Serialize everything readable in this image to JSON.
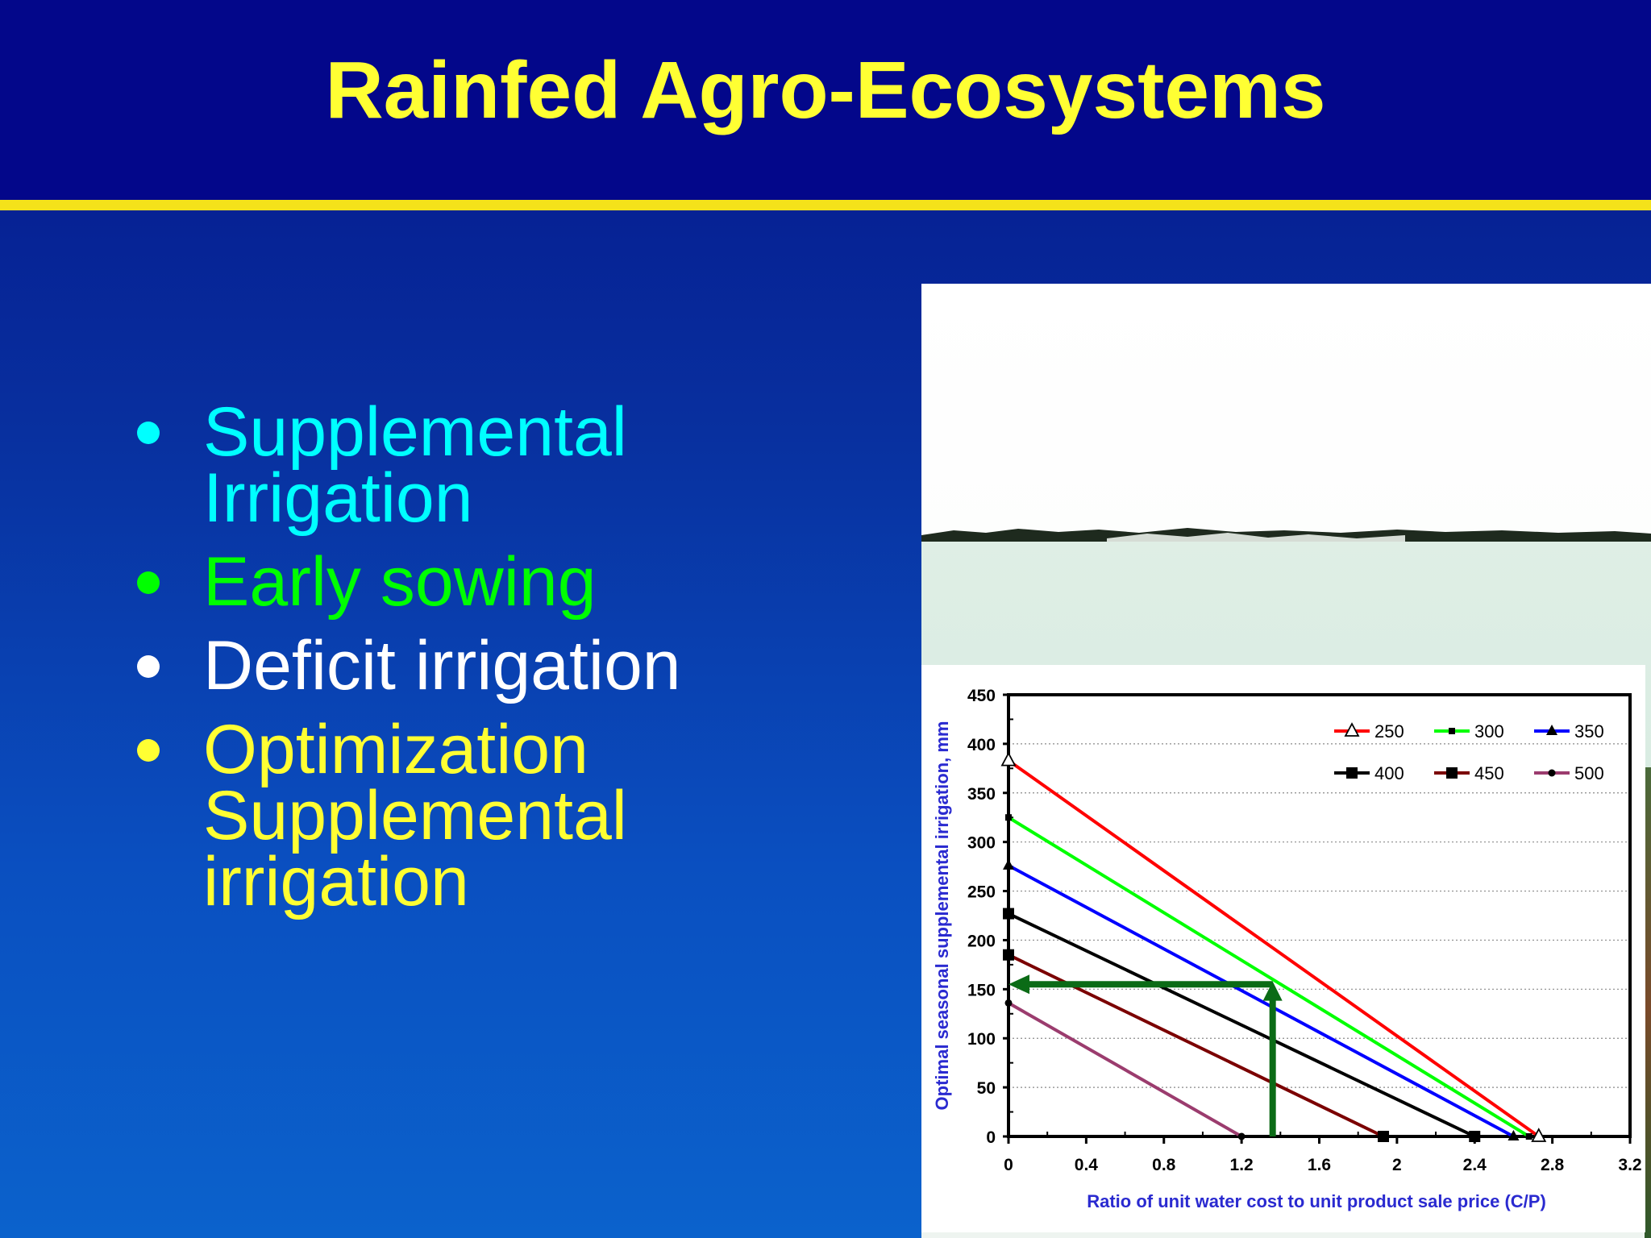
{
  "slide": {
    "title": "Rainfed Agro-Ecosystems",
    "bullets": [
      {
        "text": "Supplemental Irrigation",
        "color": "#00ffff"
      },
      {
        "text": "Early sowing",
        "color": "#00ff00"
      },
      {
        "text": "Deficit irrigation",
        "color": "#ffffff"
      },
      {
        "text": "Optimization Supplemental irrigation",
        "color": "#ffff33"
      }
    ]
  },
  "chart_data": {
    "type": "line",
    "title": "",
    "xlabel": "Ratio of unit water cost to unit product sale price (C/P)",
    "ylabel": "Optimal seasonal supplemental irrigation, mm",
    "xlim": [
      0,
      3.2
    ],
    "ylim": [
      0,
      450
    ],
    "xticks": [
      "0",
      "0.4",
      "0.8",
      "1.2",
      "1.6",
      "2",
      "2.4",
      "2.8",
      "3.2"
    ],
    "yticks": [
      "0",
      "50",
      "100",
      "150",
      "200",
      "250",
      "300",
      "350",
      "400",
      "450"
    ],
    "grid": "horizontal-dotted",
    "legend_position": "top-right",
    "series": [
      {
        "name": "250",
        "color": "#ff0000",
        "marker": "triangle-open",
        "x": [
          0,
          2.73
        ],
        "y": [
          383,
          0
        ]
      },
      {
        "name": "300",
        "color": "#00ff00",
        "marker": "square-small",
        "x": [
          0,
          2.68
        ],
        "y": [
          325,
          0
        ]
      },
      {
        "name": "350",
        "color": "#0000ff",
        "marker": "triangle",
        "x": [
          0,
          2.6
        ],
        "y": [
          276,
          0
        ]
      },
      {
        "name": "400",
        "color": "#000000",
        "marker": "square",
        "x": [
          0,
          2.4
        ],
        "y": [
          227,
          0
        ]
      },
      {
        "name": "450",
        "color": "#7b0000",
        "marker": "square",
        "x": [
          0,
          1.93
        ],
        "y": [
          185,
          0
        ]
      },
      {
        "name": "500",
        "color": "#9b3c6e",
        "marker": "circle",
        "x": [
          0,
          1.2
        ],
        "y": [
          136,
          0
        ]
      }
    ],
    "annotation": {
      "color": "#0b6b16",
      "vertical_arrow": {
        "x": 1.36,
        "y_from": 0,
        "y_to": 158
      },
      "horizontal_arrow": {
        "y": 155,
        "x_from": 1.36,
        "x_to": 0
      }
    }
  }
}
